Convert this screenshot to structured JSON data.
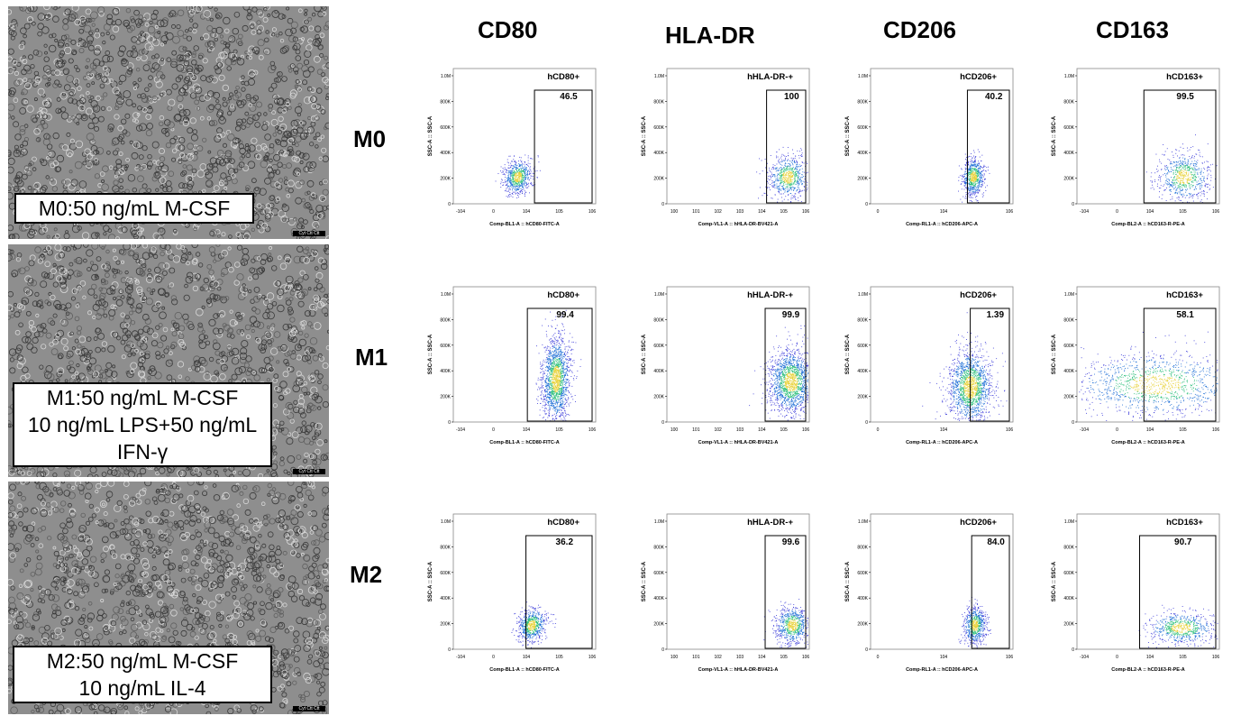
{
  "column_headers": [
    "CD80",
    "HLA-DR",
    "CD206",
    "CD163"
  ],
  "row_headers": [
    "M0",
    "M1",
    "M2"
  ],
  "image_captions": [
    [
      "M0:50 ng/mL M-CSF"
    ],
    [
      "M1:50 ng/mL M-CSF",
      "10 ng/mL LPS+50 ng/mL",
      "IFN-γ"
    ],
    [
      "M2:50 ng/mL M-CSF",
      "10 ng/mL IL-4"
    ]
  ],
  "scale_bar_label": "Cyt Ctt Ctt",
  "y_axis_label": "SSC-A :: SSC-A",
  "y_ticks": [
    "0",
    "200K",
    "400K",
    "600K",
    "800K",
    "1.0M"
  ],
  "x_axis_labels": [
    "Comp-BL1-A :: hCD80-FITC-A",
    "Comp-VL1-A :: hHLA-DR-BV421-A",
    "Comp-RL1-A :: hCD206-APC-A",
    "Comp-BL2-A :: hCD163-R-PE-A"
  ],
  "x_ticks": [
    [
      "-10^4",
      "0",
      "10^4",
      "10^5",
      "10^6"
    ],
    [
      "10^0",
      "10^1",
      "10^2",
      "10^3",
      "10^4",
      "10^5",
      "10^6"
    ],
    [
      "0",
      "10^4",
      "10^6"
    ],
    [
      "-10^4",
      "0",
      "10^4",
      "10^5",
      "10^6"
    ]
  ],
  "gate_names": [
    "hCD80+",
    "hHLA-DR-+",
    "hCD206+",
    "hCD163+"
  ],
  "chart_data": [
    {
      "type": "scatter",
      "title": "",
      "xlabel": "Comp-BL1-A :: hCD80-FITC-A",
      "ylabel": "SSC-A :: SSC-A",
      "ylim": [
        0,
        1000000
      ],
      "panels": [
        {
          "row": "M0",
          "gate": "hCD80+",
          "percent": "46.5"
        },
        {
          "row": "M1",
          "gate": "hCD80+",
          "percent": "99.4"
        },
        {
          "row": "M2",
          "gate": "hCD80+",
          "percent": "36.2"
        }
      ]
    },
    {
      "type": "scatter",
      "title": "",
      "xlabel": "Comp-VL1-A :: hHLA-DR-BV421-A",
      "ylabel": "SSC-A :: SSC-A",
      "ylim": [
        0,
        1000000
      ],
      "panels": [
        {
          "row": "M0",
          "gate": "hHLA-DR-+",
          "percent": "100"
        },
        {
          "row": "M1",
          "gate": "hHLA-DR-+",
          "percent": "99.9"
        },
        {
          "row": "M2",
          "gate": "hHLA-DR-+",
          "percent": "99.6"
        }
      ]
    },
    {
      "type": "scatter",
      "title": "",
      "xlabel": "Comp-RL1-A :: hCD206-APC-A",
      "ylabel": "SSC-A :: SSC-A",
      "ylim": [
        0,
        1000000
      ],
      "panels": [
        {
          "row": "M0",
          "gate": "hCD206+",
          "percent": "40.2"
        },
        {
          "row": "M1",
          "gate": "hCD206+",
          "percent": "1.39"
        },
        {
          "row": "M2",
          "gate": "hCD206+",
          "percent": "84.0"
        }
      ]
    },
    {
      "type": "scatter",
      "title": "",
      "xlabel": "Comp-BL2-A :: hCD163-R-PE-A",
      "ylabel": "SSC-A :: SSC-A",
      "ylim": [
        0,
        1000000
      ],
      "panels": [
        {
          "row": "M0",
          "gate": "hCD163+",
          "percent": "99.5"
        },
        {
          "row": "M1",
          "gate": "hCD163+",
          "percent": "58.1"
        },
        {
          "row": "M2",
          "gate": "hCD163+",
          "percent": "90.7"
        }
      ]
    }
  ]
}
